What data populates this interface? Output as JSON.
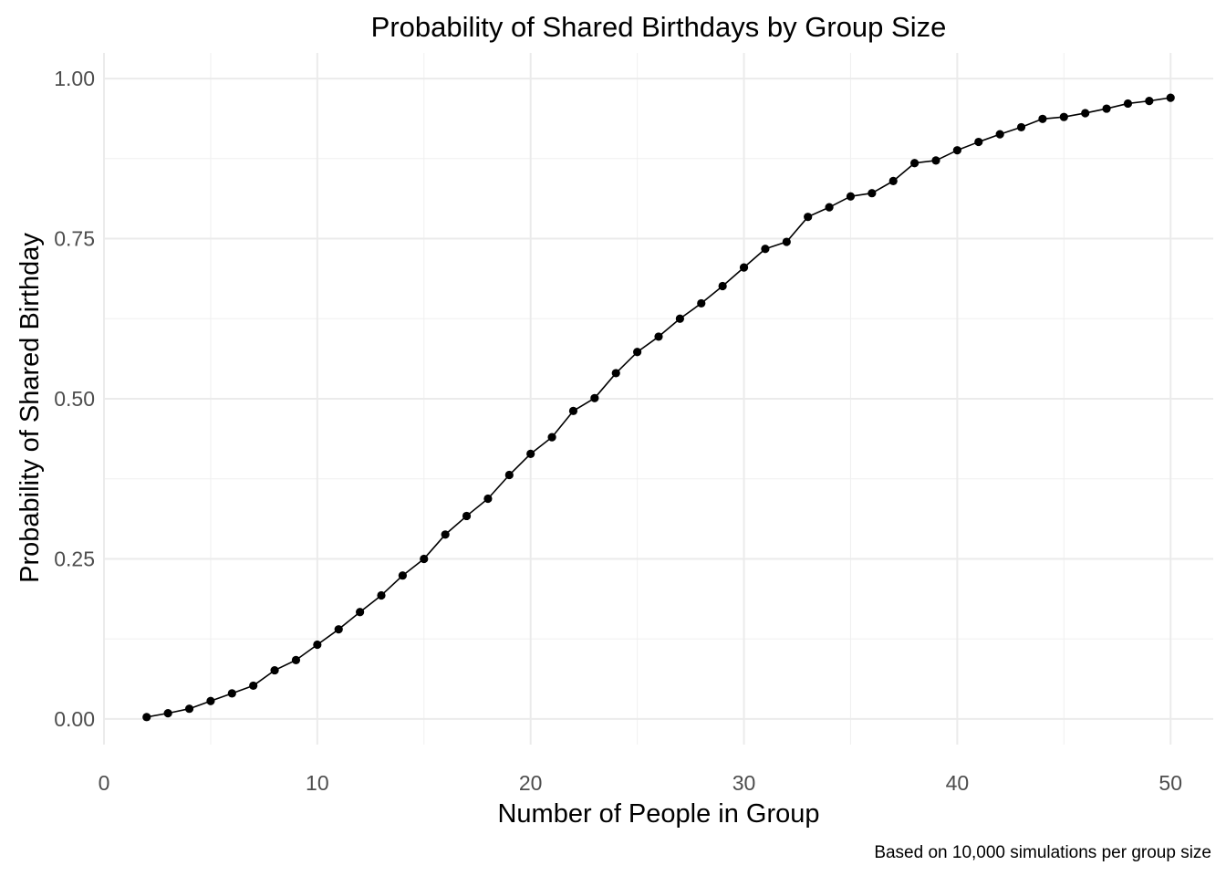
{
  "chart_data": {
    "type": "line",
    "title": "Probability of Shared Birthdays by Group Size",
    "xlabel": "Number of People in Group",
    "ylabel": "Probability of Shared Birthday",
    "caption": "Based on 10,000 simulations per group size",
    "xlim": [
      0,
      52
    ],
    "ylim": [
      -0.04,
      1.04
    ],
    "x_ticks": [
      0,
      10,
      20,
      30,
      40,
      50
    ],
    "x_tick_labels": [
      "0",
      "10",
      "20",
      "30",
      "40",
      "50"
    ],
    "y_ticks": [
      0,
      0.25,
      0.5,
      0.75,
      1
    ],
    "y_tick_labels": [
      "0.00",
      "0.25",
      "0.50",
      "0.75",
      "1.00"
    ],
    "grid": true,
    "legend": "none",
    "series": [
      {
        "color": "#000000",
        "x": [
          2,
          3,
          4,
          5,
          6,
          7,
          8,
          9,
          10,
          11,
          12,
          13,
          14,
          15,
          16,
          17,
          18,
          19,
          20,
          21,
          22,
          23,
          24,
          25,
          26,
          27,
          28,
          29,
          30,
          31,
          32,
          33,
          34,
          35,
          36,
          37,
          38,
          39,
          40,
          41,
          42,
          43,
          44,
          45,
          46,
          47,
          48,
          49,
          50
        ],
        "y": [
          0.003,
          0.009,
          0.016,
          0.028,
          0.04,
          0.052,
          0.076,
          0.092,
          0.116,
          0.14,
          0.167,
          0.193,
          0.224,
          0.25,
          0.288,
          0.317,
          0.344,
          0.381,
          0.414,
          0.44,
          0.481,
          0.501,
          0.54,
          0.573,
          0.597,
          0.625,
          0.649,
          0.676,
          0.705,
          0.734,
          0.745,
          0.784,
          0.799,
          0.816,
          0.821,
          0.84,
          0.868,
          0.872,
          0.888,
          0.901,
          0.913,
          0.924,
          0.937,
          0.94,
          0.946,
          0.953,
          0.961,
          0.965,
          0.97
        ]
      }
    ]
  }
}
